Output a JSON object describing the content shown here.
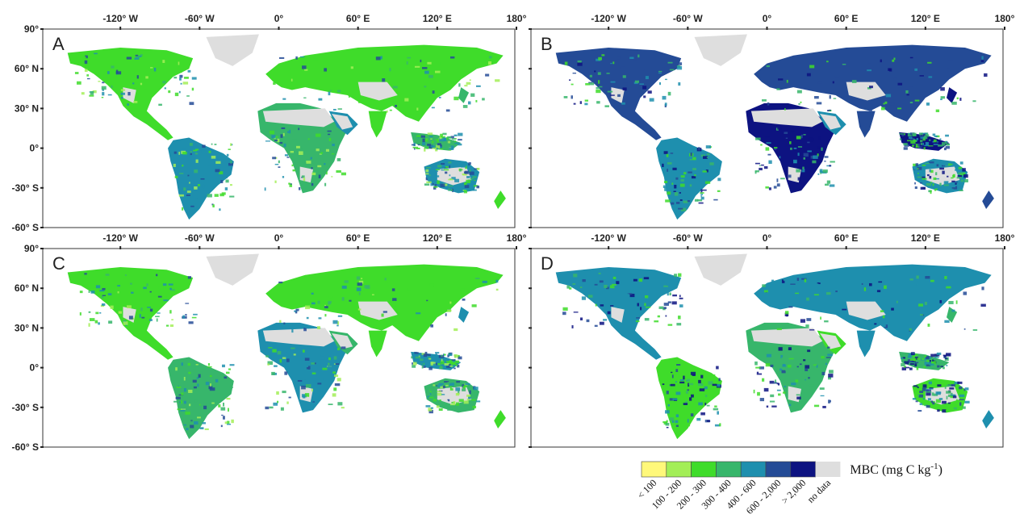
{
  "panels": [
    {
      "id": "A",
      "label": "A"
    },
    {
      "id": "B",
      "label": "B"
    },
    {
      "id": "C",
      "label": "C"
    },
    {
      "id": "D",
      "label": "D"
    }
  ],
  "axes": {
    "x_ticks": [
      {
        "value": -120,
        "label": "-120° W"
      },
      {
        "value": -60,
        "label": "-60° W"
      },
      {
        "value": 0,
        "label": "0°"
      },
      {
        "value": 60,
        "label": "60° E"
      },
      {
        "value": 120,
        "label": "120° E"
      },
      {
        "value": 180,
        "label": "180°"
      }
    ],
    "y_ticks": [
      {
        "value": 90,
        "label": "90°"
      },
      {
        "value": 60,
        "label": "60° N"
      },
      {
        "value": 30,
        "label": "30° N"
      },
      {
        "value": 0,
        "label": "0°"
      },
      {
        "value": -30,
        "label": "-30° S"
      },
      {
        "value": -60,
        "label": "-60° S"
      }
    ],
    "lon_range": [
      -180,
      180
    ],
    "lat_range": [
      -60,
      90
    ]
  },
  "legend": {
    "title": "MBC (mg C kg",
    "title_sup": "-1",
    "title_close": ")",
    "classes": [
      {
        "label": "< 100",
        "color": "#fff87a"
      },
      {
        "label": "100 - 200",
        "color": "#a3ee57"
      },
      {
        "label": "200 - 300",
        "color": "#3fdc2a"
      },
      {
        "label": "300 - 400",
        "color": "#37b66b"
      },
      {
        "label": "400 - 600",
        "color": "#1e8fae"
      },
      {
        "label": "600 - 2,000",
        "color": "#244b96"
      },
      {
        "label": "> 2,000",
        "color": "#0d1381"
      },
      {
        "label": "no data",
        "color": "#dedede"
      }
    ]
  }
}
